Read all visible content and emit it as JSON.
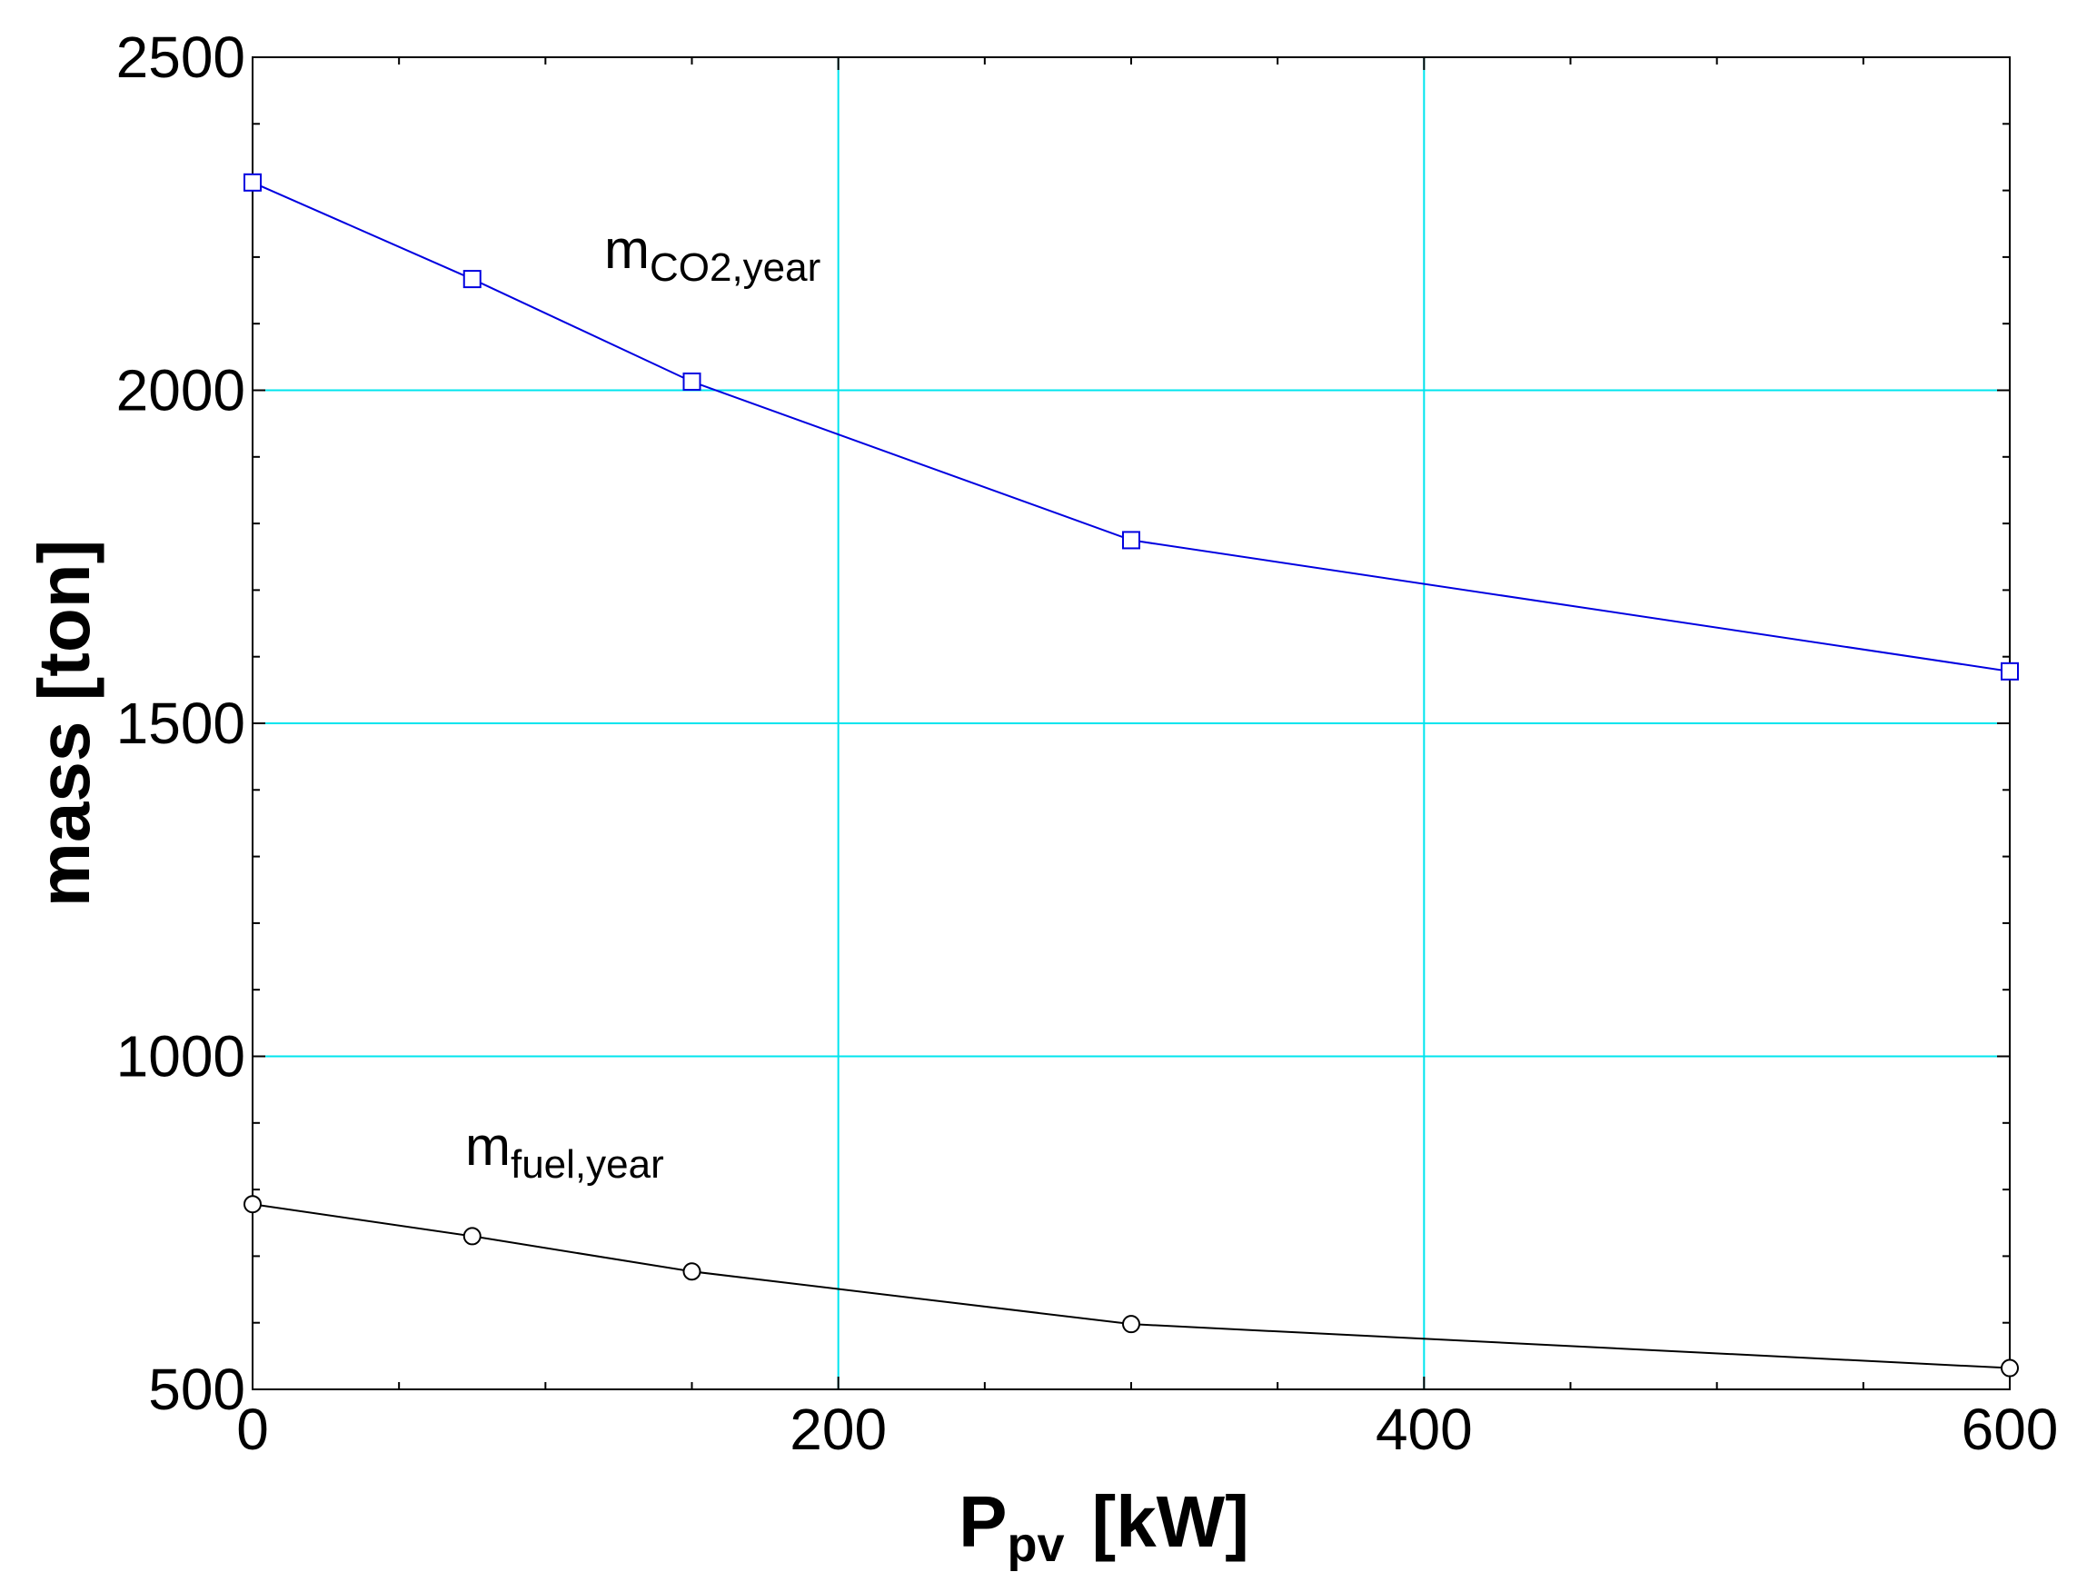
{
  "chart_data": {
    "type": "line",
    "title": "",
    "xlabel": {
      "main": "P",
      "sub": "pv",
      "unit": "[kW]"
    },
    "ylabel": "mass [ton]",
    "xlim": [
      0,
      600
    ],
    "ylim": [
      500,
      2500
    ],
    "xticks": [
      0,
      200,
      400,
      600
    ],
    "xtick_labels": [
      "0",
      "200",
      "400",
      "600"
    ],
    "yticks": [
      500,
      1000,
      1500,
      2000,
      2500
    ],
    "ytick_labels": [
      "500",
      "1000",
      "1500",
      "2000",
      "2500"
    ],
    "grid_x": [
      200,
      400
    ],
    "grid_y": [
      1000,
      1500,
      2000
    ],
    "grid_color": "#00e5ee",
    "x": [
      0,
      75,
      150,
      300,
      600
    ],
    "series": [
      {
        "name": "m_CO2,year",
        "label_main": "m",
        "label_sub": "CO2,year",
        "color": "#0000e0",
        "marker": "square",
        "values": [
          2312,
          2167,
          2013,
          1775,
          1578
        ]
      },
      {
        "name": "m_fuel,year",
        "label_main": "m",
        "label_sub": "fuel,year",
        "color": "#000000",
        "marker": "circle",
        "values": [
          778,
          730,
          677,
          598,
          532
        ]
      }
    ]
  }
}
